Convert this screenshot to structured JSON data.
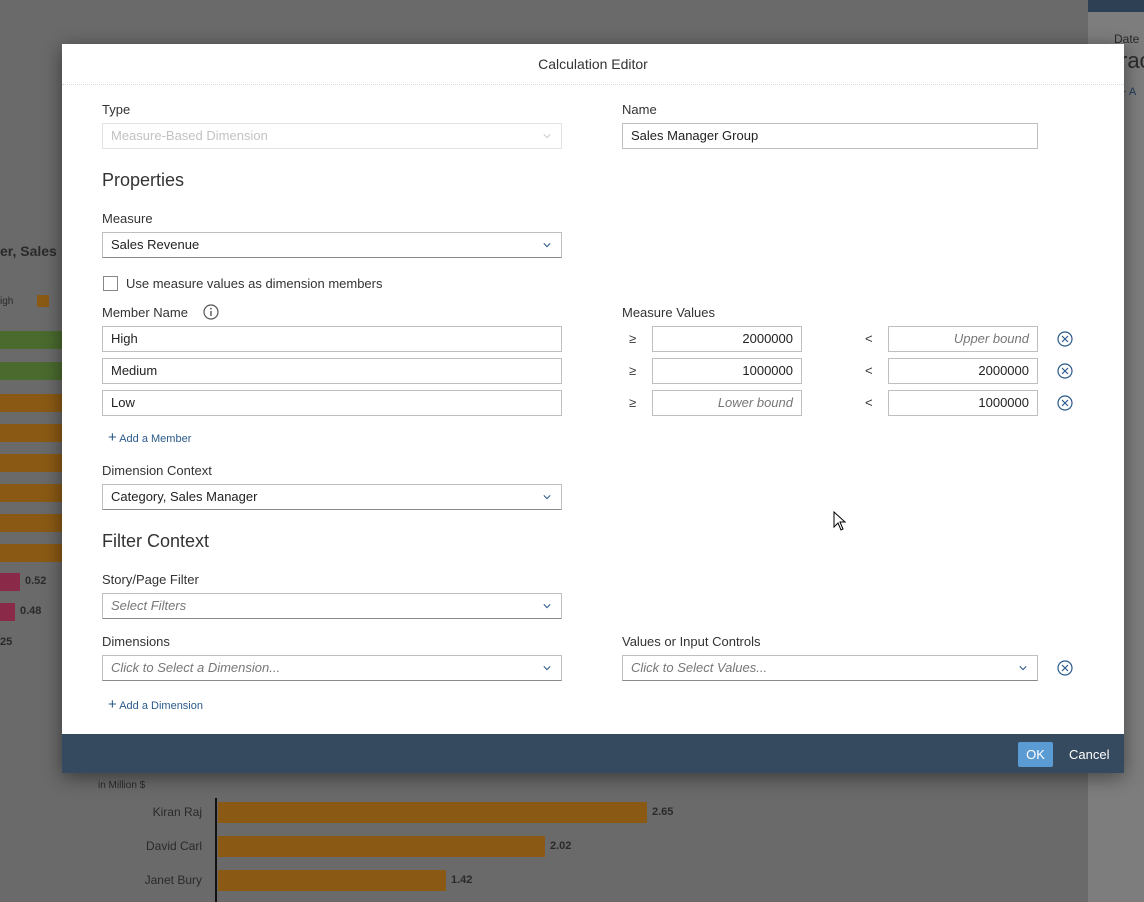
{
  "background": {
    "title_fragment": "er, Sales",
    "legend_fragment": "igh",
    "bar_labels": [
      "0.52",
      "0.48",
      "25"
    ],
    "unit": "in Million $",
    "rows": [
      {
        "name": "Kiran Raj",
        "value": "2.65"
      },
      {
        "name": "David Carl",
        "value": "2.02"
      },
      {
        "name": "Janet Bury",
        "value": "1.42"
      }
    ],
    "side_fragments": [
      "Date",
      "rac",
      "+ A"
    ]
  },
  "dialog": {
    "title": "Calculation Editor",
    "type_label": "Type",
    "type_value": "Measure-Based Dimension",
    "name_label": "Name",
    "name_value": "Sales Manager Group",
    "properties_heading": "Properties",
    "measure_label": "Measure",
    "measure_value": "Sales Revenue",
    "checkbox_label": "Use measure values as dimension members",
    "member_name_label": "Member Name",
    "measure_values_label": "Measure Values",
    "operators": {
      "lower": "≥",
      "upper": "<"
    },
    "members": [
      {
        "name": "High",
        "lower": "2000000",
        "upper": "Upper bound"
      },
      {
        "name": "Medium",
        "lower": "1000000",
        "upper": "2000000"
      },
      {
        "name": "Low",
        "lower": "Lower bound",
        "upper": "1000000"
      }
    ],
    "add_member": "Add a Member",
    "dimension_context_label": "Dimension Context",
    "dimension_context_value": "Category, Sales Manager",
    "filter_heading": "Filter Context",
    "story_filter_label": "Story/Page Filter",
    "story_filter_placeholder": "Select Filters",
    "dimensions_label": "Dimensions",
    "dimensions_placeholder": "Click to Select a Dimension...",
    "values_label": "Values or Input Controls",
    "values_placeholder": "Click to Select Values...",
    "add_dimension": "Add a Dimension",
    "ok": "OK",
    "cancel": "Cancel"
  }
}
